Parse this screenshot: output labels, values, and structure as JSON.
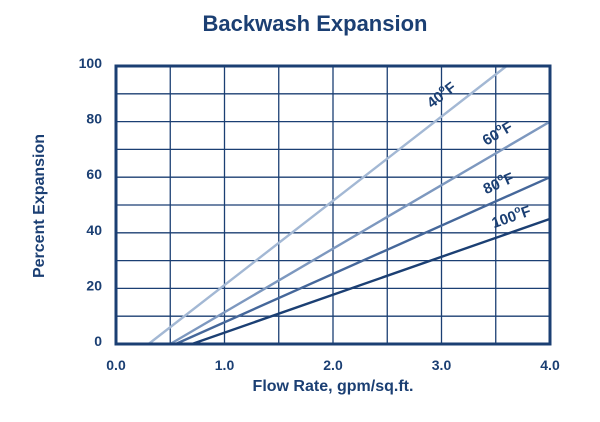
{
  "chart_data": {
    "type": "line",
    "title": "Backwash Expansion",
    "xlabel": "Flow Rate, gpm/sq.ft.",
    "ylabel": "Percent Expansion",
    "xlim": [
      0,
      4.0
    ],
    "ylim": [
      0,
      100
    ],
    "x_ticks": [
      "0.0",
      "1.0",
      "2.0",
      "3.0",
      "4.0"
    ],
    "y_ticks": [
      "0",
      "20",
      "40",
      "60",
      "80",
      "100"
    ],
    "grid": true,
    "series": [
      {
        "name": "40°F",
        "label_main": "40",
        "label_sup": "o",
        "label_unit": "F",
        "color": "#a3b8d4",
        "x": [
          0.3,
          3.6
        ],
        "y": [
          0,
          100
        ]
      },
      {
        "name": "60°F",
        "label_main": "60",
        "label_sup": "o",
        "label_unit": "F",
        "color": "#7d98bf",
        "x": [
          0.5,
          4.0
        ],
        "y": [
          0,
          80
        ]
      },
      {
        "name": "80°F",
        "label_main": "80",
        "label_sup": "o",
        "label_unit": "F",
        "color": "#45679a",
        "x": [
          0.55,
          4.0
        ],
        "y": [
          0,
          60
        ]
      },
      {
        "name": "100°F",
        "label_main": "100",
        "label_sup": "o",
        "label_unit": "F",
        "color": "#1b3f73",
        "x": [
          0.7,
          4.0
        ],
        "y": [
          0,
          45
        ]
      }
    ],
    "colors": {
      "frame": "#1b3f73",
      "grid": "#1b3f73",
      "text": "#1b3f73"
    }
  }
}
